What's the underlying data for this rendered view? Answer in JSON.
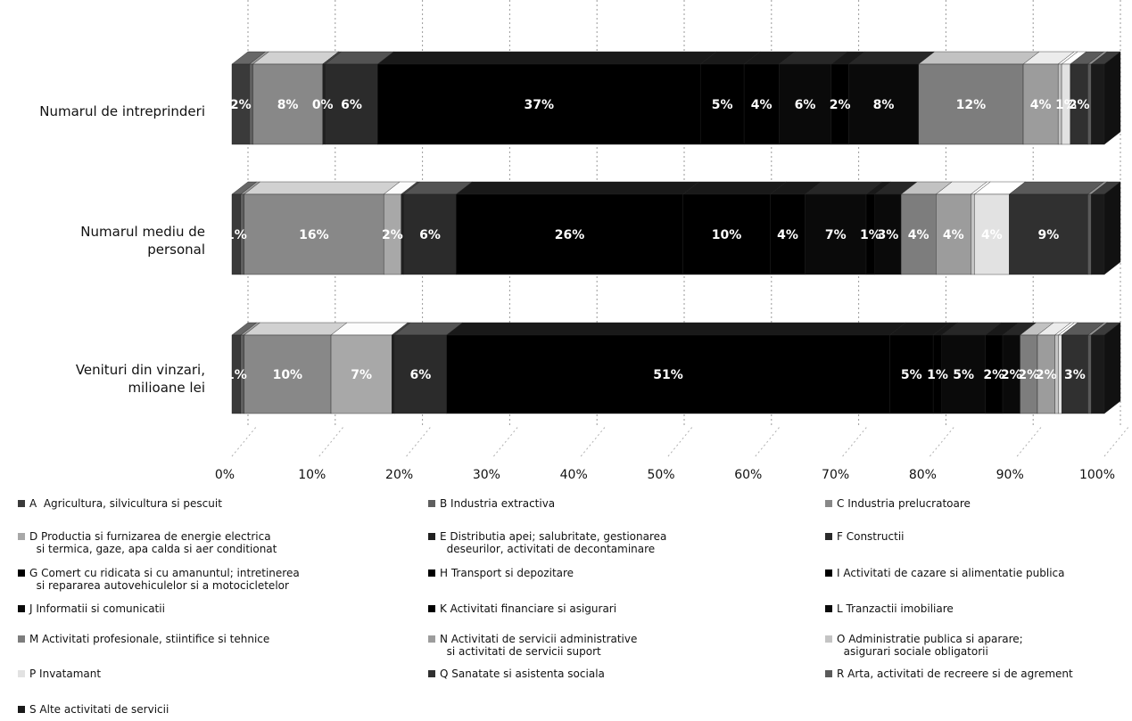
{
  "chart_data": {
    "type": "bar",
    "orientation": "horizontal",
    "stacked": "percent",
    "three_d": true,
    "categories": [
      "Numarul de intreprinderi",
      "Numarul mediu de personal",
      "Venituri din vinzari, milioane lei"
    ],
    "category_lines": [
      [
        "Numarul de intreprinderi"
      ],
      [
        "Numarul mediu de",
        "personal"
      ],
      [
        "Venituri din vinzari,",
        "milioane lei"
      ]
    ],
    "x_ticks": [
      "0%",
      "10%",
      "20%",
      "30%",
      "40%",
      "50%",
      "60%",
      "70%",
      "80%",
      "90%",
      "100%"
    ],
    "xlim": [
      0,
      100
    ],
    "grid": true,
    "legend_position": "bottom",
    "series": [
      {
        "name": "A  Agricultura, silvicultura si pescuit",
        "legend_lines": [
          "A  Agricultura, silvicultura si pescuit"
        ],
        "color": "#3a3a3a",
        "values": [
          2,
          1,
          1
        ],
        "labels": [
          "2%",
          "1%",
          "1%"
        ]
      },
      {
        "name": "B Industria extractiva",
        "legend_lines": [
          "B Industria extractiva"
        ],
        "color": "#5f5f5f",
        "values": [
          0.4,
          0.4,
          0.4
        ],
        "labels": [
          "",
          "",
          ""
        ]
      },
      {
        "name": "C Industria prelucratoare",
        "legend_lines": [
          "C Industria prelucratoare"
        ],
        "color": "#888888",
        "values": [
          8,
          16,
          10
        ],
        "labels": [
          "8%",
          "16%",
          "10%"
        ]
      },
      {
        "name": "D Productia si furnizarea de energie electrica si termica, gaze, apa calda si aer conditionat",
        "legend_lines": [
          "D Productia si furnizarea de energie electrica",
          "  si termica, gaze, apa calda si aer conditionat"
        ],
        "color": "#a8a8a8",
        "values": [
          0,
          2,
          7
        ],
        "labels": [
          "0%",
          "2%",
          "7%"
        ]
      },
      {
        "name": "E Distributia apei; salubritate, gestionarea deseurilor, activitati de decontaminare",
        "legend_lines": [
          "E Distributia apei; salubritate, gestionarea",
          "  deseurilor, activitati de decontaminare"
        ],
        "color": "#202020",
        "values": [
          0.3,
          0.3,
          0.3
        ],
        "labels": [
          "",
          "",
          ""
        ]
      },
      {
        "name": "F Constructii",
        "legend_lines": [
          "F Constructii"
        ],
        "color": "#2b2b2b",
        "values": [
          6,
          6,
          6
        ],
        "labels": [
          "6%",
          "6%",
          "6%"
        ]
      },
      {
        "name": "G Comert cu ridicata si cu amanuntul; intretinerea si repararea autovehiculelor si a motocicletelor",
        "legend_lines": [
          "G Comert cu ridicata si cu amanuntul; intretinerea",
          "  si repararea autovehiculelor si a motocicletelor"
        ],
        "color": "#000000",
        "values": [
          37,
          26,
          51
        ],
        "labels": [
          "37%",
          "26%",
          "51%"
        ]
      },
      {
        "name": "H Transport si depozitare",
        "legend_lines": [
          "H Transport si depozitare"
        ],
        "color": "#000000",
        "values": [
          5,
          10,
          5
        ],
        "labels": [
          "5%",
          "10%",
          "5%"
        ]
      },
      {
        "name": "I Activitati de cazare si alimentatie publica",
        "legend_lines": [
          "I Activitati de cazare si alimentatie publica"
        ],
        "color": "#000000",
        "values": [
          4,
          4,
          1
        ],
        "labels": [
          "4%",
          "4%",
          "1%"
        ]
      },
      {
        "name": "J Informatii si comunicatii",
        "legend_lines": [
          "J Informatii si comunicatii"
        ],
        "color": "#0a0a0a",
        "values": [
          6,
          7,
          5
        ],
        "labels": [
          "6%",
          "7%",
          "5%"
        ]
      },
      {
        "name": "K Activitati financiare si asigurari",
        "legend_lines": [
          "K Activitati financiare si asigurari"
        ],
        "color": "#000000",
        "values": [
          2,
          1,
          2
        ],
        "labels": [
          "2%",
          "1%",
          "2%"
        ]
      },
      {
        "name": "L Tranzactii imobiliare",
        "legend_lines": [
          "L Tranzactii imobiliare"
        ],
        "color": "#0a0a0a",
        "values": [
          8,
          3,
          2
        ],
        "labels": [
          "8%",
          "3%",
          "2%"
        ]
      },
      {
        "name": "M Activitati profesionale, stiintifice si tehnice",
        "legend_lines": [
          "M Activitati profesionale, stiintifice si tehnice"
        ],
        "color": "#7d7d7d",
        "values": [
          12,
          4,
          2
        ],
        "labels": [
          "12%",
          "4%",
          "2%"
        ]
      },
      {
        "name": "N Activitati de servicii administrative si activitati de servicii suport",
        "legend_lines": [
          "N Activitati de servicii administrative",
          "  si activitati de servicii suport"
        ],
        "color": "#9c9c9c",
        "values": [
          4,
          4,
          2
        ],
        "labels": [
          "4%",
          "4%",
          "2%"
        ]
      },
      {
        "name": "O Administratie publica si aparare; asigurari sociale obligatorii",
        "legend_lines": [
          "O Administratie publica si aparare;",
          "  asigurari sociale obligatorii"
        ],
        "color": "#c4c4c4",
        "values": [
          0.4,
          0.4,
          0.4
        ],
        "labels": [
          "",
          "",
          ""
        ]
      },
      {
        "name": "P Invatamant",
        "legend_lines": [
          "P Invatamant"
        ],
        "color": "#e2e2e2",
        "values": [
          1,
          4,
          0.4
        ],
        "labels": [
          "1%",
          "4%",
          ""
        ]
      },
      {
        "name": "Q Sanatate si asistenta sociala",
        "legend_lines": [
          "Q Sanatate si asistenta sociala"
        ],
        "color": "#303030",
        "values": [
          2,
          9,
          3
        ],
        "labels": [
          "2%",
          "9%",
          "3%"
        ]
      },
      {
        "name": "R Arta, activitati de recreere si de agrement",
        "legend_lines": [
          "R Arta, activitati de recreere si de agrement"
        ],
        "color": "#5a5a5a",
        "values": [
          0.4,
          0.4,
          0.4
        ],
        "labels": [
          "",
          "",
          ""
        ]
      },
      {
        "name": "S Alte activitati de servicii",
        "legend_lines": [
          "S Alte activitati de servicii"
        ],
        "color": "#1a1a1a",
        "values": [
          1.5,
          1.5,
          1.5
        ],
        "labels": [
          "",
          "",
          ""
        ]
      }
    ]
  }
}
